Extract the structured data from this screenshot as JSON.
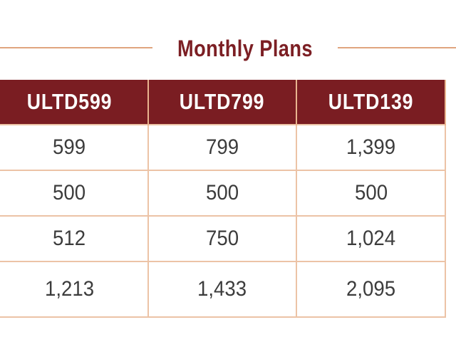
{
  "title": "Monthly Plans",
  "table": {
    "headers": [
      "ULTD599",
      "ULTD799",
      "ULTD139"
    ],
    "rows": [
      [
        "599",
        "799",
        "1,399"
      ],
      [
        "500",
        "500",
        "500"
      ],
      [
        "512",
        "750",
        "1,024"
      ],
      [
        "1,213",
        "1,433",
        "2,095"
      ]
    ]
  },
  "colors": {
    "header_bg": "#7a1d22",
    "title_text": "#7c1f24",
    "rule_line": "#e0a57f",
    "cell_border": "#ecc3a6"
  }
}
